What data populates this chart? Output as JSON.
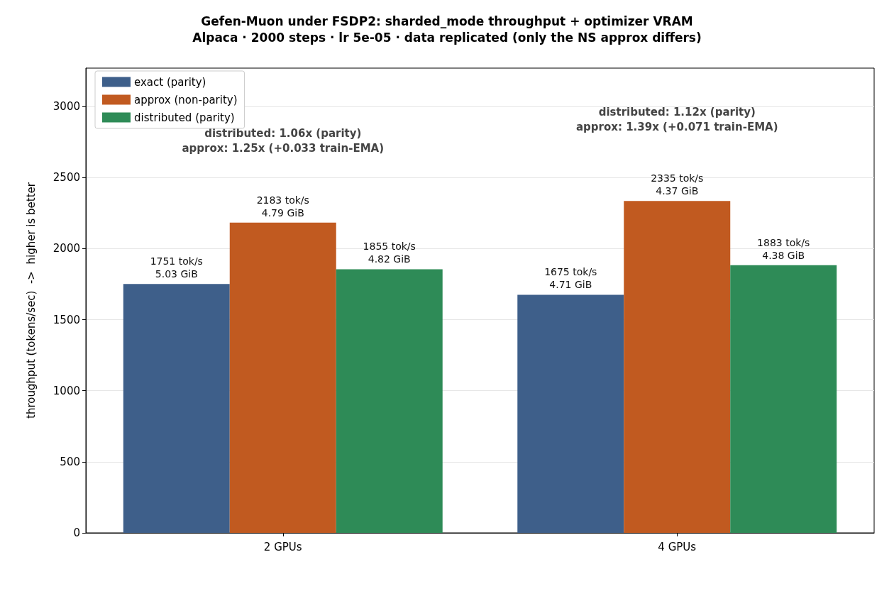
{
  "chart_data": {
    "type": "bar",
    "title": "Gefen-Muon under FSDP2: sharded_mode throughput + optimizer VRAM",
    "subtitle": "Alpaca · 2000 steps · lr 5e-05 · data replicated (only the NS approx differs)",
    "ylabel": "throughput (tokens/sec)  ->  higher is better",
    "categories": [
      "2 GPUs",
      "4 GPUs"
    ],
    "series": [
      {
        "name": "exact (parity)",
        "color": "#3e5f8a",
        "values": [
          1751,
          1675
        ],
        "value_labels": [
          "1751 tok/s\n5.03 GiB",
          "1675 tok/s\n4.71 GiB"
        ]
      },
      {
        "name": "approx (non-parity)",
        "color": "#c15a20",
        "values": [
          2183,
          2335
        ],
        "value_labels": [
          "2183 tok/s\n4.79 GiB",
          "2335 tok/s\n4.37 GiB"
        ]
      },
      {
        "name": "distributed (parity)",
        "color": "#2e8b57",
        "values": [
          1855,
          1883
        ],
        "value_labels": [
          "1855 tok/s\n4.82 GiB",
          "1883 tok/s\n4.38 GiB"
        ]
      }
    ],
    "annotations": [
      "distributed: 1.06x (parity)\napprox: 1.25x (+0.033 train-EMA)",
      "distributed: 1.12x (parity)\napprox: 1.39x (+0.071 train-EMA)"
    ],
    "ylim": [
      0,
      3270
    ],
    "yticks": [
      0,
      500,
      1000,
      1500,
      2000,
      2500,
      3000
    ],
    "grid": "y",
    "legend": "top left"
  }
}
